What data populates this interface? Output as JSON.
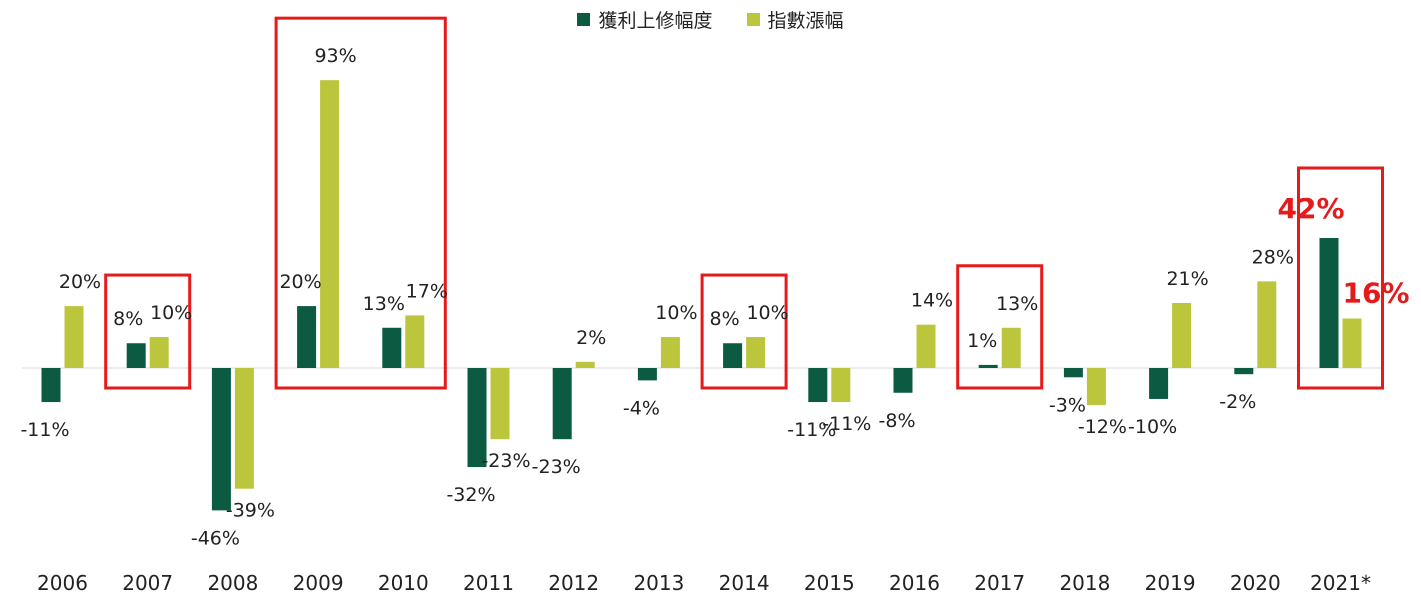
{
  "legend": {
    "items": [
      {
        "label": "獲利上修幅度",
        "color": "#0b5a41"
      },
      {
        "label": "指數漲幅",
        "color": "#bcc63c"
      }
    ]
  },
  "colors": {
    "earnings": "#0b5a41",
    "index": "#bcc63c",
    "highlight": "#e51a1a",
    "baseline": "#d8d8d8",
    "text": "#222222"
  },
  "chart_data": {
    "type": "bar",
    "categories": [
      "2006",
      "2007",
      "2008",
      "2009",
      "2010",
      "2011",
      "2012",
      "2013",
      "2014",
      "2015",
      "2016",
      "2017",
      "2018",
      "2019",
      "2020",
      "2021*"
    ],
    "series": [
      {
        "name": "獲利上修幅度",
        "values": [
          -11,
          8,
          -46,
          20,
          13,
          -32,
          -23,
          -4,
          8,
          -11,
          -8,
          1,
          -3,
          -10,
          -2,
          42
        ],
        "labels": [
          "-11%",
          "8%",
          "-46%",
          "20%",
          "13%",
          "-32%",
          "-23%",
          "-4%",
          "8%",
          "-11%",
          "-8%",
          "1%",
          "-3%",
          "-10%",
          "-2%",
          "42%"
        ]
      },
      {
        "name": "指數漲幅",
        "values": [
          20,
          10,
          -39,
          93,
          17,
          -23,
          2,
          10,
          10,
          -11,
          14,
          13,
          -12,
          21,
          28,
          16
        ],
        "labels": [
          "20%",
          "10%",
          "-39%",
          "93%",
          "17%",
          "-23%",
          "2%",
          "10%",
          "10%",
          "-11%",
          "14%",
          "13%",
          "-12%",
          "21%",
          "28%",
          "16%"
        ]
      }
    ],
    "highlighted_categories": [
      [
        "2007"
      ],
      [
        "2009",
        "2010"
      ],
      [
        "2014"
      ],
      [
        "2017"
      ],
      [
        "2021*"
      ]
    ],
    "emphasized_category": "2021*",
    "legend_position": "top-center",
    "grid": false,
    "ylim": [
      -50,
      100
    ]
  }
}
